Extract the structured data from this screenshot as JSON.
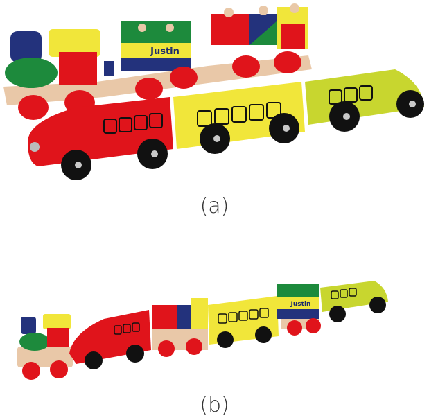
{
  "figure": {
    "panel_a": {
      "caption": "(a)",
      "name_block_text": "Justin"
    },
    "panel_b": {
      "caption": "(b)",
      "name_block_text": "Justin"
    }
  },
  "colors": {
    "red": "#e0141b",
    "yellow": "#f1e63a",
    "lime": "#c8d62f",
    "blue": "#23327c",
    "green": "#1d8a3c",
    "wood": "#e9c8a8",
    "navy": "#1b2a6d",
    "black": "#111111"
  }
}
